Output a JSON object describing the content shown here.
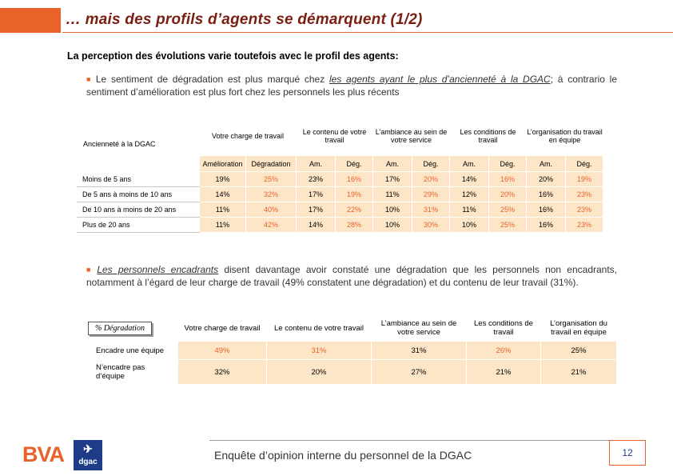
{
  "header": {
    "title": "… mais des profils d’agents se démarquent (1/2)",
    "subtitle": "La perception des évolutions varie toutefois avec le profil des agents:"
  },
  "bullet1": {
    "pre": "Le sentiment de dégradation est plus marqué chez ",
    "underlined": "les agents ayant le plus d’ancienneté à la DGAC",
    "post": "; à contrario le sentiment d’amélioration est plus fort chez les personnels les plus récents"
  },
  "table1": {
    "row_header": "Ancienneté à la DGAC",
    "groups": [
      "Votre charge de travail",
      "Le contenu de votre travail",
      "L’ambiance au sein de votre service",
      "Les conditions de travail",
      "L’organisation du travail en équipe"
    ],
    "first_sub": [
      "Amélioration",
      "Dégradation"
    ],
    "sub": [
      "Am.",
      "Dég."
    ],
    "rows": [
      {
        "label": "Moins de 5 ans",
        "values": [
          "19%",
          "25%",
          "23%",
          "16%",
          "17%",
          "20%",
          "14%",
          "16%",
          "20%",
          "19%"
        ]
      },
      {
        "label": "De 5 ans à moins de 10 ans",
        "values": [
          "14%",
          "32%",
          "17%",
          "19%",
          "11%",
          "29%",
          "12%",
          "20%",
          "16%",
          "23%"
        ]
      },
      {
        "label": "De 10 ans à moins de 20 ans",
        "values": [
          "11%",
          "40%",
          "17%",
          "22%",
          "10%",
          "31%",
          "11%",
          "25%",
          "16%",
          "23%"
        ]
      },
      {
        "label": "Plus de 20 ans",
        "values": [
          "11%",
          "42%",
          "14%",
          "28%",
          "10%",
          "30%",
          "10%",
          "25%",
          "16%",
          "23%"
        ]
      }
    ]
  },
  "bullet2": {
    "underlined": "Les personnels encadrants",
    "post": " disent davantage avoir constaté une dégradation que les personnels non encadrants, notamment à l’égard de leur charge de travail (49% constatent une dégradation) et du contenu de leur travail (31%)."
  },
  "table2": {
    "corner": "% Dégradation",
    "columns": [
      "Votre charge de travail",
      "Le contenu de votre travail",
      "L’ambiance au sein de votre service",
      "Les conditions de travail",
      "L’organisation du travail en équipe"
    ],
    "rows": [
      {
        "label": "Encadre une équipe",
        "values": [
          "49%",
          "31%",
          "31%",
          "26%",
          "25%"
        ]
      },
      {
        "label": "N’encadre pas d’équipe",
        "values": [
          "32%",
          "20%",
          "27%",
          "21%",
          "21%"
        ]
      }
    ]
  },
  "footer": {
    "text": "Enquête d’opinion interne du personnel de la DGAC",
    "page": "12",
    "logo_bva": "BVA",
    "logo_dgac": "dgac"
  },
  "colors": {
    "accent": "#e8622a",
    "cell_bg": "#fde6c8",
    "title": "#7a1e12"
  }
}
